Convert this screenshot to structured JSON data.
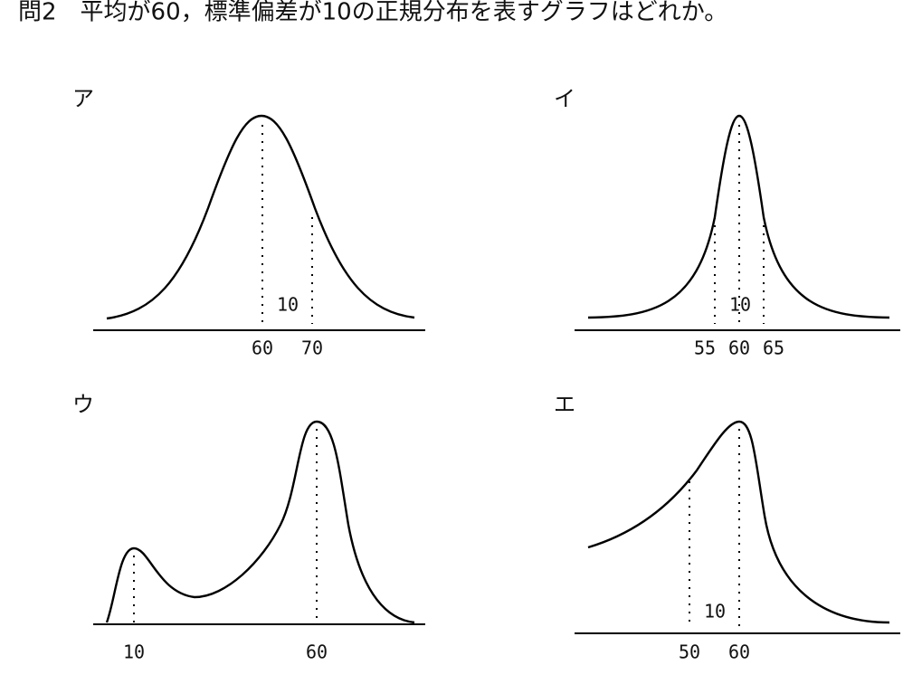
{
  "question": "問2　平均が60，標準偏差が10の正規分布を表すグラフはどれか。",
  "panels": [
    {
      "label": "ア",
      "ticks": [
        "60",
        "70"
      ],
      "annotation": "10"
    },
    {
      "label": "イ",
      "ticks": [
        "55",
        "60",
        "65"
      ],
      "annotation": "10"
    },
    {
      "label": "ウ",
      "ticks": [
        "10",
        "60"
      ]
    },
    {
      "label": "エ",
      "ticks": [
        "50",
        "60"
      ],
      "annotation": "10"
    }
  ]
}
